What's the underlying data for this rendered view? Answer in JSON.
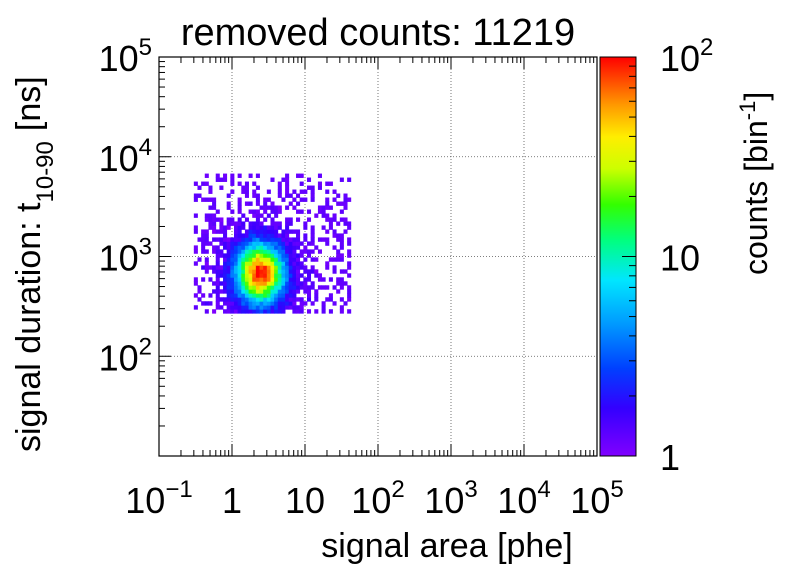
{
  "chart_data": {
    "type": "heatmap",
    "title": "removed counts: 11219",
    "xlabel": "signal area [phe]",
    "ylabel_main": "signal duration: t",
    "ylabel_sub": "10-90",
    "ylabel_unit": "[ns]",
    "zlabel_main": "counts [bin",
    "zlabel_sup": "-1",
    "zlabel_end": "]",
    "x_scale": "log",
    "y_scale": "log",
    "z_scale": "log",
    "xlim": [
      0.1,
      100000
    ],
    "ylim": [
      10,
      100000
    ],
    "zlim": [
      1,
      100
    ],
    "grid": true,
    "x_ticks": [
      {
        "value": 0.1,
        "base": "10",
        "exp": "−1"
      },
      {
        "value": 1,
        "base": "1",
        "exp": ""
      },
      {
        "value": 10,
        "base": "10",
        "exp": ""
      },
      {
        "value": 100,
        "base": "10",
        "exp": "2"
      },
      {
        "value": 1000,
        "base": "10",
        "exp": "3"
      },
      {
        "value": 10000,
        "base": "10",
        "exp": "4"
      },
      {
        "value": 100000,
        "base": "10",
        "exp": "5"
      }
    ],
    "y_ticks": [
      {
        "value": 100,
        "base": "10",
        "exp": "2"
      },
      {
        "value": 1000,
        "base": "10",
        "exp": "3"
      },
      {
        "value": 10000,
        "base": "10",
        "exp": "4"
      },
      {
        "value": 100000,
        "base": "10",
        "exp": "5"
      }
    ],
    "z_ticks": [
      {
        "value": 1,
        "base": "1",
        "exp": ""
      },
      {
        "value": 10,
        "base": "10",
        "exp": ""
      },
      {
        "value": 100,
        "base": "10",
        "exp": "2"
      }
    ],
    "cluster": {
      "center_area_phe": 2.3,
      "center_duration_ns": 650,
      "peak_counts": 100,
      "area_range_phe": [
        0.3,
        40
      ],
      "duration_range_ns": [
        270,
        6500
      ]
    }
  }
}
